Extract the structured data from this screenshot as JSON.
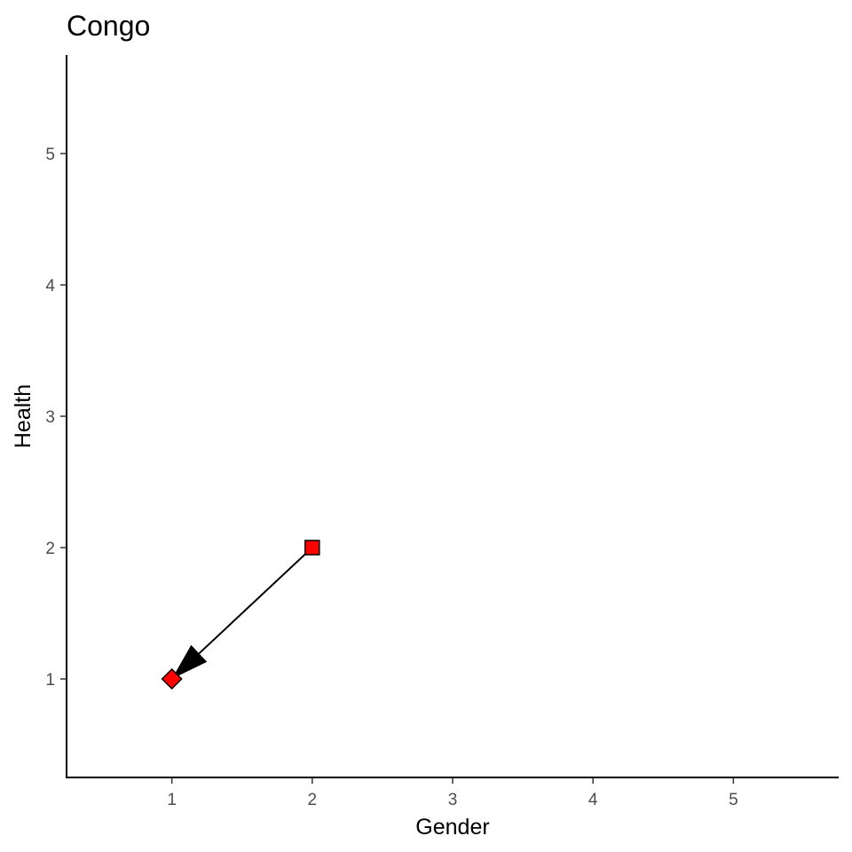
{
  "chart_data": {
    "type": "scatter",
    "title": "Congo",
    "xlabel": "Gender",
    "ylabel": "Health",
    "xlim": [
      0.25,
      5.75
    ],
    "ylim": [
      0.25,
      5.75
    ],
    "x_ticks": [
      1,
      2,
      3,
      4,
      5
    ],
    "y_ticks": [
      1,
      2,
      3,
      4,
      5
    ],
    "grid": false,
    "points": [
      {
        "x": 2,
        "y": 2,
        "shape": "square",
        "color": "#FF0000"
      },
      {
        "x": 1,
        "y": 1,
        "shape": "diamond",
        "color": "#FF0000"
      }
    ],
    "arrows": [
      {
        "from": [
          2,
          2
        ],
        "to": [
          1,
          1
        ],
        "color": "#000000"
      }
    ]
  }
}
